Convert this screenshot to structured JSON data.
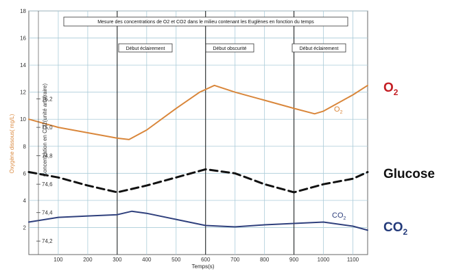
{
  "chart_data": {
    "type": "line",
    "title": "Mesure des concentrations de O2 et CO2 dans le milieu contenant les Euglènes en fonction du temps",
    "xlabel": "Temps(s)",
    "ylabel_left": "Oxygène dissous( mg/L)",
    "ylabel_inner": "Concentration en CO2(unité arbitraire)",
    "xlim": [
      0,
      1150
    ],
    "ylim": [
      0,
      18
    ],
    "xticks": [
      100,
      200,
      300,
      400,
      500,
      600,
      700,
      800,
      900,
      1000,
      1100
    ],
    "yticks": [
      2,
      4,
      6,
      8,
      10,
      12,
      14,
      16,
      18
    ],
    "secondary_yticks": [
      "74,2",
      "74,4",
      "74,6",
      "74,8",
      "75,0",
      "75,2"
    ],
    "grid": true,
    "annotations": [
      "Début éclairement",
      "Début obscurité",
      "Début éclairement"
    ],
    "series": [
      {
        "name": "O2",
        "color": "#d9863a",
        "x": [
          0,
          100,
          200,
          300,
          340,
          400,
          500,
          580,
          630,
          700,
          800,
          900,
          970,
          1000,
          1100,
          1150
        ],
        "y": [
          10.0,
          9.4,
          9.0,
          8.6,
          8.5,
          9.2,
          10.8,
          12.0,
          12.5,
          12.0,
          11.4,
          10.8,
          10.4,
          10.6,
          11.8,
          12.5
        ]
      },
      {
        "name": "Glucose",
        "color": "#111111",
        "x": [
          0,
          100,
          200,
          300,
          400,
          500,
          600,
          700,
          800,
          900,
          1000,
          1100,
          1150
        ],
        "y": [
          6.1,
          5.7,
          5.1,
          4.6,
          5.1,
          5.7,
          6.3,
          6.0,
          5.2,
          4.6,
          5.2,
          5.6,
          6.1
        ]
      },
      {
        "name": "CO2",
        "color": "#2e3f7c",
        "x": [
          0,
          100,
          200,
          300,
          350,
          400,
          500,
          600,
          700,
          800,
          900,
          1000,
          1100,
          1150
        ],
        "y": [
          2.4,
          2.75,
          2.85,
          2.95,
          3.2,
          3.05,
          2.6,
          2.15,
          2.05,
          2.2,
          2.3,
          2.4,
          2.1,
          1.8
        ]
      }
    ],
    "inline_labels": {
      "o2": "O",
      "o2_sub": "2",
      "co2": "CO",
      "co2_sub": "2"
    },
    "side_labels": {
      "o2": "O",
      "o2_sub": "2",
      "glucose": "Glucose",
      "co2": "CO",
      "co2_sub": "2"
    }
  }
}
